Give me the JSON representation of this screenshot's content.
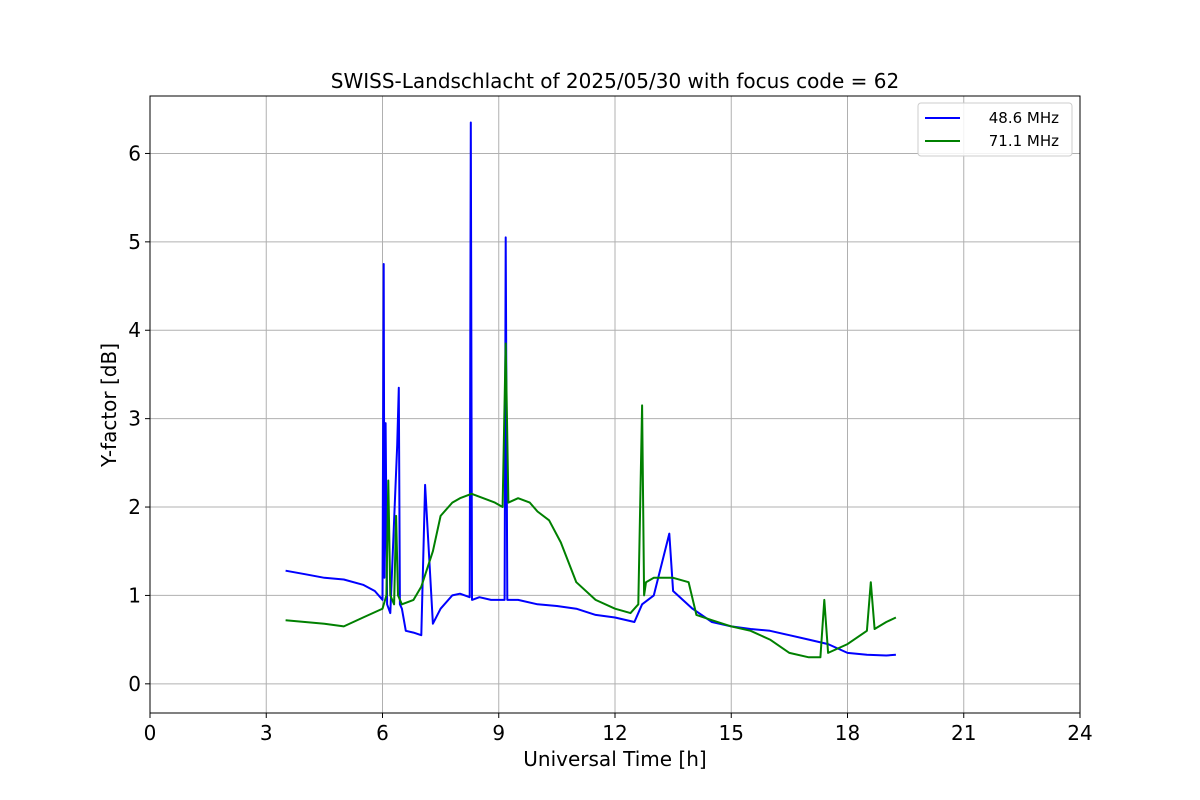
{
  "chart_data": {
    "type": "line",
    "title": "SWISS-Landschlacht of 2025/05/30 with focus code = 62",
    "xlabel": "Universal Time [h]",
    "ylabel": "Y-factor [dB]",
    "xlim": [
      0,
      24
    ],
    "ylim": [
      -0.33,
      6.65
    ],
    "xticks": [
      0,
      3,
      6,
      9,
      12,
      15,
      18,
      21,
      24
    ],
    "yticks": [
      0,
      1,
      2,
      3,
      4,
      5,
      6
    ],
    "grid": true,
    "legend_position": "top-right",
    "series": [
      {
        "name": "48.6 MHz",
        "color": "#0000ff",
        "x": [
          3.5,
          4.0,
          4.5,
          5.0,
          5.5,
          5.8,
          6.0,
          6.03,
          6.05,
          6.08,
          6.12,
          6.2,
          6.38,
          6.42,
          6.45,
          6.5,
          6.6,
          6.8,
          7.0,
          7.1,
          7.3,
          7.5,
          7.8,
          8.0,
          8.25,
          8.28,
          8.31,
          8.5,
          8.8,
          9.0,
          9.15,
          9.18,
          9.22,
          9.5,
          10.0,
          10.5,
          11.0,
          11.5,
          12.0,
          12.5,
          12.7,
          13.0,
          13.4,
          13.5,
          14.0,
          14.5,
          15.0,
          15.5,
          16.0,
          16.5,
          17.0,
          17.5,
          18.0,
          18.5,
          19.0,
          19.25
        ],
        "y": [
          1.28,
          1.24,
          1.2,
          1.18,
          1.12,
          1.05,
          0.95,
          4.75,
          1.2,
          2.95,
          0.9,
          0.8,
          2.7,
          3.35,
          0.9,
          0.85,
          0.6,
          0.58,
          0.55,
          2.25,
          0.68,
          0.85,
          1.0,
          1.02,
          0.98,
          6.35,
          0.95,
          0.98,
          0.95,
          0.95,
          0.95,
          5.05,
          0.95,
          0.95,
          0.9,
          0.88,
          0.85,
          0.78,
          0.75,
          0.7,
          0.9,
          1.0,
          1.7,
          1.05,
          0.85,
          0.7,
          0.65,
          0.62,
          0.6,
          0.55,
          0.5,
          0.45,
          0.35,
          0.33,
          0.32,
          0.33
        ]
      },
      {
        "name": "71.1 MHz",
        "color": "#008000",
        "x": [
          3.5,
          4.0,
          4.5,
          5.0,
          5.5,
          6.0,
          6.1,
          6.15,
          6.2,
          6.3,
          6.35,
          6.4,
          6.5,
          6.8,
          7.0,
          7.3,
          7.5,
          7.8,
          8.0,
          8.3,
          8.6,
          8.9,
          9.1,
          9.18,
          9.25,
          9.5,
          9.8,
          10.0,
          10.3,
          10.6,
          11.0,
          11.5,
          12.0,
          12.4,
          12.6,
          12.7,
          12.75,
          12.8,
          13.0,
          13.5,
          13.9,
          14.1,
          14.5,
          15.0,
          15.5,
          16.0,
          16.5,
          17.0,
          17.3,
          17.4,
          17.5,
          18.0,
          18.5,
          18.6,
          18.7,
          19.0,
          19.25
        ],
        "y": [
          0.72,
          0.7,
          0.68,
          0.65,
          0.75,
          0.85,
          1.0,
          2.3,
          1.0,
          0.9,
          1.9,
          1.0,
          0.9,
          0.95,
          1.1,
          1.5,
          1.9,
          2.05,
          2.1,
          2.15,
          2.1,
          2.05,
          2.0,
          3.85,
          2.05,
          2.1,
          2.05,
          1.95,
          1.85,
          1.6,
          1.15,
          0.95,
          0.85,
          0.8,
          0.9,
          3.15,
          1.0,
          1.15,
          1.2,
          1.2,
          1.15,
          0.78,
          0.72,
          0.65,
          0.6,
          0.5,
          0.35,
          0.3,
          0.3,
          0.95,
          0.35,
          0.45,
          0.6,
          1.15,
          0.62,
          0.7,
          0.75
        ]
      }
    ]
  }
}
